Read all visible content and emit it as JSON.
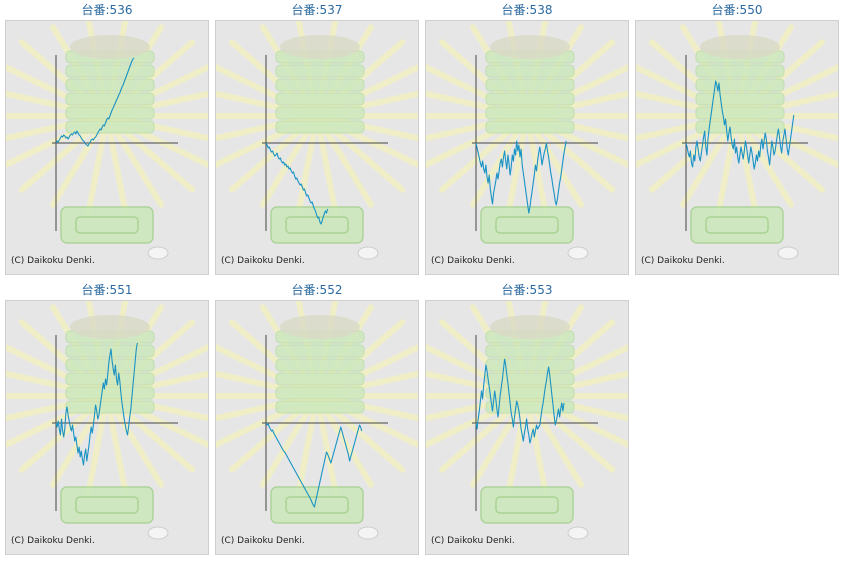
{
  "chart_data": [
    {
      "type": "line",
      "title": "台番:536",
      "values": [
        0,
        2,
        1,
        3,
        5,
        7,
        6,
        8,
        7,
        5,
        6,
        4,
        6,
        8,
        9,
        8,
        10,
        11,
        9,
        12,
        10,
        8,
        7,
        5,
        3,
        2,
        1,
        -1,
        -2,
        -3,
        -1,
        1,
        3,
        4,
        3,
        5,
        6,
        8,
        10,
        12,
        14,
        13,
        16,
        18,
        17,
        20,
        23,
        25,
        24,
        27,
        30,
        33,
        35,
        38,
        40,
        43,
        45,
        48,
        50,
        53,
        56,
        58,
        61,
        64,
        67,
        70,
        73,
        76,
        79,
        82,
        84,
        85
      ]
    },
    {
      "type": "line",
      "title": "台番:537",
      "values": [
        0,
        -2,
        -5,
        -4,
        -7,
        -9,
        -8,
        -11,
        -13,
        -12,
        -10,
        -14,
        -16,
        -15,
        -18,
        -20,
        -19,
        -22,
        -21,
        -24,
        -23,
        -26,
        -25,
        -28,
        -30,
        -29,
        -33,
        -36,
        -35,
        -38,
        -40,
        -42,
        -41,
        -44,
        -47,
        -46,
        -50,
        -53,
        -52,
        -55,
        -58,
        -60,
        -59,
        -63,
        -66,
        -68,
        -72,
        -75,
        -74,
        -79,
        -81,
        -78,
        -74,
        -71,
        -68,
        -70,
        -66
      ]
    },
    {
      "type": "line",
      "title": "台番:538",
      "values": [
        0,
        -5,
        -10,
        -15,
        -20,
        -24,
        -18,
        -26,
        -30,
        -22,
        -34,
        -40,
        -32,
        -46,
        -54,
        -61,
        -50,
        -44,
        -38,
        -30,
        -36,
        -28,
        -20,
        -16,
        -24,
        -14,
        -8,
        -18,
        -26,
        -12,
        -20,
        -32,
        -24,
        -12,
        -18,
        -6,
        -12,
        2,
        -8,
        -2,
        -14,
        -6,
        -22,
        -30,
        -38,
        -46,
        -54,
        -62,
        -70,
        -64,
        -56,
        -48,
        -40,
        -32,
        -22,
        -28,
        -18,
        -10,
        -4,
        -12,
        -22,
        -16,
        -10,
        -6,
        0,
        -8,
        -14,
        -22,
        -30,
        -36,
        -44,
        -50,
        -58,
        -62,
        -56,
        -48,
        -40,
        -34,
        -26,
        -18,
        -10,
        -4,
        2
      ]
    },
    {
      "type": "line",
      "title": "台番:550",
      "values": [
        0,
        -4,
        -10,
        -14,
        -8,
        -20,
        -24,
        -12,
        -18,
        -4,
        2,
        -6,
        -14,
        -18,
        -10,
        -2,
        6,
        12,
        -4,
        -12,
        4,
        14,
        22,
        30,
        38,
        46,
        54,
        62,
        58,
        52,
        60,
        48,
        40,
        32,
        26,
        18,
        24,
        12,
        2,
        10,
        16,
        6,
        -2,
        -6,
        4,
        -10,
        -4,
        -14,
        -20,
        -12,
        -4,
        -10,
        -16,
        -8,
        2,
        -4,
        -12,
        -20,
        -12,
        -4,
        -10,
        -18,
        -26,
        -20,
        -12,
        -18,
        -8,
        -14,
        -2,
        4,
        -6,
        2,
        10,
        4,
        -8,
        -14,
        -22,
        -10,
        2,
        -4,
        -12,
        -8,
        0,
        8,
        14,
        6,
        -4,
        -10,
        2,
        8,
        14,
        4,
        -6,
        -12,
        -4,
        4,
        12,
        20,
        28
      ]
    },
    {
      "type": "line",
      "title": "台番:551",
      "values": [
        0,
        -4,
        2,
        -6,
        -12,
        4,
        -8,
        -14,
        -6,
        10,
        16,
        8,
        2,
        -4,
        -8,
        -2,
        -10,
        -18,
        -14,
        -22,
        -30,
        -24,
        -34,
        -28,
        -36,
        -42,
        -32,
        -26,
        -38,
        -30,
        -22,
        -12,
        -4,
        -10,
        -2,
        8,
        18,
        12,
        4,
        8,
        16,
        24,
        32,
        40,
        34,
        44,
        38,
        48,
        60,
        68,
        74,
        62,
        54,
        48,
        58,
        44,
        38,
        50,
        42,
        30,
        20,
        12,
        4,
        -2,
        -8,
        -12,
        -4,
        6,
        14,
        26,
        38,
        50,
        62,
        74,
        80
      ]
    },
    {
      "type": "line",
      "title": "台番:552",
      "values": [
        0,
        -2,
        -1,
        -4,
        -6,
        -8,
        -7,
        -10,
        -12,
        -14,
        -16,
        -18,
        -20,
        -22,
        -24,
        -26,
        -28,
        -29,
        -31,
        -33,
        -35,
        -37,
        -39,
        -41,
        -43,
        -45,
        -47,
        -49,
        -51,
        -53,
        -55,
        -57,
        -59,
        -61,
        -63,
        -65,
        -67,
        -69,
        -71,
        -73,
        -75,
        -77,
        -80,
        -82,
        -84,
        -79,
        -74,
        -69,
        -64,
        -59,
        -54,
        -49,
        -44,
        -39,
        -34,
        -29,
        -31,
        -34,
        -37,
        -40,
        -36,
        -32,
        -28,
        -24,
        -20,
        -16,
        -12,
        -8,
        -4,
        -8,
        -12,
        -16,
        -20,
        -24,
        -28,
        -32,
        -38,
        -34,
        -30,
        -26,
        -22,
        -18,
        -14,
        -10,
        -6,
        -2,
        -4,
        -8
      ]
    },
    {
      "type": "line",
      "title": "台番:553",
      "values": [
        0,
        -6,
        4,
        12,
        22,
        32,
        24,
        38,
        48,
        58,
        52,
        44,
        36,
        28,
        20,
        12,
        22,
        32,
        24,
        14,
        6,
        16,
        28,
        36,
        44,
        54,
        64,
        58,
        48,
        40,
        30,
        20,
        10,
        4,
        -4,
        6,
        14,
        22,
        18,
        12,
        4,
        -6,
        -12,
        -18,
        -10,
        -4,
        4,
        -6,
        -12,
        -20,
        -16,
        -10,
        -6,
        -14,
        -8,
        -2,
        -6,
        -4,
        -2,
        6,
        14,
        20,
        28,
        36,
        42,
        50,
        56,
        48,
        38,
        28,
        18,
        8,
        -2,
        2,
        8,
        14,
        6,
        14,
        20,
        12,
        20
      ]
    }
  ],
  "copyright": "(C) Daikoku Denki.",
  "colors": {
    "line": "#1a93c4",
    "axis": "#444444",
    "title": "#2b6aa0",
    "panel_bg": "#e6e6e6",
    "art_green": "#cde8bd",
    "art_yellow": "#f2f0c2"
  }
}
